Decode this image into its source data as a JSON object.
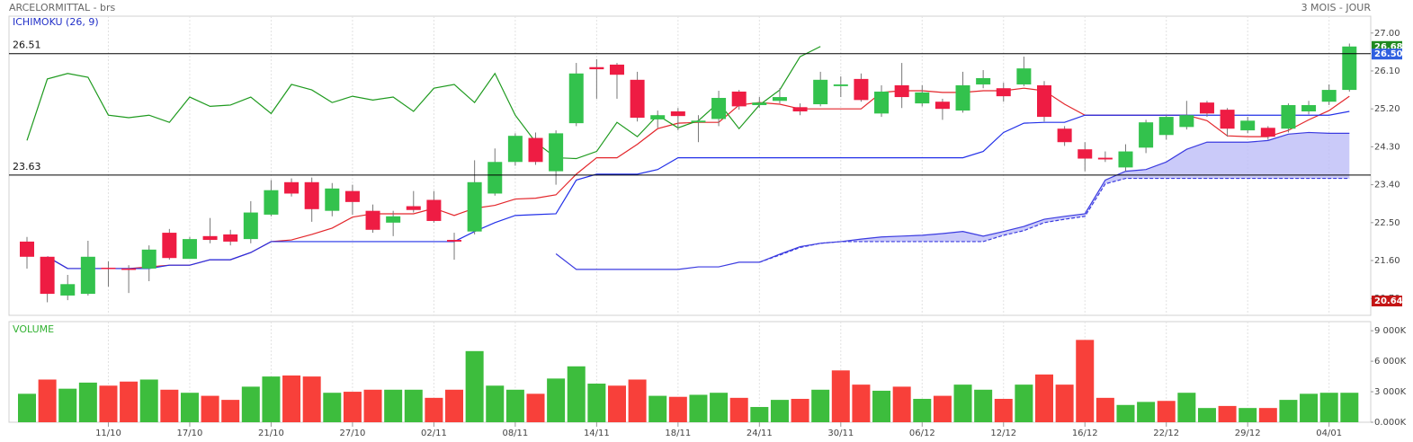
{
  "header": {
    "title": "ARCELORMITTAL - brs",
    "period": "3 MOIS - JOUR",
    "indicator": "ICHIMOKU (26, 9)"
  },
  "chart_data": [
    {
      "type": "candlestick",
      "categories": [
        null,
        null,
        null,
        null,
        "11/10",
        null,
        null,
        null,
        "17/10",
        null,
        null,
        null,
        "21/10",
        null,
        null,
        null,
        "27/10",
        null,
        null,
        null,
        "02/11",
        null,
        null,
        null,
        "08/11",
        null,
        null,
        null,
        "14/11",
        null,
        null,
        null,
        "18/11",
        null,
        null,
        null,
        "24/11",
        null,
        null,
        null,
        "30/11",
        null,
        null,
        null,
        "06/12",
        null,
        null,
        null,
        "12/12",
        null,
        null,
        null,
        "16/12",
        null,
        null,
        null,
        "22/12",
        null,
        null,
        null,
        "29/12",
        null,
        null,
        null,
        "04/01",
        null
      ],
      "open": [
        22.05,
        21.69,
        20.77,
        20.81,
        21.43,
        21.41,
        21.41,
        22.26,
        21.64,
        22.18,
        22.22,
        22.11,
        22.69,
        23.46,
        23.46,
        22.78,
        23.25,
        22.78,
        22.5,
        22.89,
        23.04,
        22.09,
        22.29,
        23.19,
        23.94,
        24.51,
        23.72,
        24.86,
        26.19,
        26.25,
        25.89,
        24.95,
        25.14,
        24.88,
        24.96,
        25.61,
        25.29,
        25.39,
        25.24,
        25.31,
        25.74,
        25.91,
        25.09,
        25.76,
        25.33,
        25.37,
        25.16,
        25.78,
        25.69,
        25.78,
        25.76,
        24.73,
        24.24,
        24.04,
        23.81,
        24.28,
        24.58,
        24.77,
        25.35,
        25.18,
        24.69,
        24.75,
        24.73,
        25.14,
        25.37,
        25.65
      ],
      "high": [
        22.16,
        21.69,
        21.26,
        22.07,
        21.58,
        21.49,
        21.96,
        22.35,
        22.16,
        22.61,
        22.33,
        23.01,
        23.51,
        23.55,
        23.57,
        23.44,
        23.4,
        22.93,
        22.78,
        23.25,
        23.25,
        22.26,
        23.98,
        24.26,
        24.62,
        24.64,
        24.69,
        26.29,
        26.38,
        26.29,
        26.08,
        25.16,
        25.22,
        25.05,
        25.63,
        25.65,
        25.48,
        25.69,
        25.33,
        26.08,
        25.97,
        26.04,
        25.76,
        26.29,
        25.76,
        25.44,
        26.08,
        26.12,
        25.82,
        26.44,
        25.86,
        24.79,
        24.41,
        24.19,
        24.36,
        24.94,
        25.05,
        25.39,
        25.39,
        25.22,
        25.01,
        24.79,
        25.33,
        25.39,
        25.78,
        26.75
      ],
      "low": [
        21.41,
        20.61,
        20.66,
        20.77,
        20.98,
        20.83,
        21.11,
        21.62,
        21.64,
        22.01,
        21.96,
        22.01,
        22.65,
        23.12,
        22.52,
        22.65,
        22.69,
        22.26,
        22.18,
        22.74,
        22.5,
        21.62,
        22.22,
        23.14,
        23.85,
        23.87,
        23.4,
        24.79,
        25.44,
        25.44,
        24.9,
        24.75,
        24.69,
        24.41,
        24.79,
        25.18,
        25.22,
        25.33,
        25.05,
        25.26,
        25.48,
        25.37,
        25.01,
        25.22,
        25.26,
        24.94,
        25.11,
        25.69,
        25.37,
        25.74,
        24.9,
        24.32,
        23.72,
        23.94,
        23.72,
        24.15,
        24.47,
        24.71,
        25.01,
        24.54,
        24.62,
        24.47,
        24.64,
        25.07,
        25.29,
        25.61
      ],
      "close": [
        21.69,
        20.81,
        21.04,
        21.69,
        21.4,
        21.38,
        21.86,
        21.66,
        22.11,
        22.09,
        22.05,
        22.74,
        23.27,
        23.19,
        22.82,
        23.31,
        22.99,
        22.33,
        22.65,
        22.8,
        22.54,
        22.05,
        23.46,
        23.94,
        24.56,
        23.94,
        24.62,
        26.04,
        26.14,
        26.01,
        24.99,
        25.05,
        25.03,
        24.92,
        25.46,
        25.26,
        25.35,
        25.48,
        25.14,
        25.89,
        25.78,
        25.41,
        25.61,
        25.48,
        25.59,
        25.2,
        25.76,
        25.93,
        25.5,
        26.16,
        25.01,
        24.41,
        24.02,
        24.0,
        24.19,
        24.88,
        25.01,
        25.05,
        25.09,
        24.73,
        24.92,
        24.54,
        25.29,
        25.29,
        25.65,
        26.68
      ],
      "up_color": "#33c24d",
      "down_color": "#ee1c43",
      "series": [
        {
          "color": "#e3262b",
          "values": [
            null,
            21.69,
            21.41,
            21.41,
            21.41,
            21.41,
            21.45,
            21.49,
            21.49,
            21.62,
            21.62,
            21.79,
            22.05,
            22.09,
            22.22,
            22.37,
            22.63,
            22.71,
            22.71,
            22.71,
            22.84,
            22.67,
            22.84,
            22.91,
            23.06,
            23.08,
            23.16,
            23.65,
            24.04,
            24.04,
            24.36,
            24.73,
            24.86,
            24.88,
            24.88,
            25.29,
            25.35,
            25.31,
            25.2,
            25.2,
            25.2,
            25.2,
            25.59,
            25.63,
            25.63,
            25.59,
            25.59,
            25.63,
            25.63,
            25.69,
            25.63,
            25.31,
            25.05,
            25.05,
            25.05,
            25.05,
            25.05,
            25.05,
            24.92,
            24.56,
            24.54,
            24.54,
            24.69,
            24.94,
            25.16,
            25.5
          ]
        },
        {
          "color": "#2230e8",
          "values": [
            null,
            21.69,
            21.41,
            21.41,
            21.41,
            21.41,
            21.41,
            21.49,
            21.49,
            21.62,
            21.62,
            21.79,
            22.05,
            22.05,
            22.05,
            22.05,
            22.05,
            22.05,
            22.05,
            22.05,
            22.05,
            22.05,
            22.29,
            22.5,
            22.67,
            22.69,
            22.71,
            23.51,
            23.65,
            23.65,
            23.65,
            23.76,
            24.04,
            24.04,
            24.04,
            24.04,
            24.04,
            24.04,
            24.04,
            24.04,
            24.04,
            24.04,
            24.04,
            24.04,
            24.04,
            24.04,
            24.04,
            24.19,
            24.64,
            24.86,
            24.88,
            24.88,
            25.05,
            25.05,
            25.05,
            25.05,
            25.05,
            25.05,
            25.05,
            25.05,
            25.05,
            25.05,
            25.05,
            25.05,
            25.05,
            25.14
          ]
        },
        {
          "color": "#1e9a1e",
          "values": [
            24.45,
            25.91,
            26.04,
            25.95,
            25.05,
            24.99,
            25.05,
            24.88,
            25.48,
            25.26,
            25.29,
            25.48,
            25.09,
            25.78,
            25.65,
            25.35,
            25.5,
            25.41,
            25.48,
            25.14,
            25.69,
            25.78,
            25.35,
            26.04,
            25.05,
            24.41,
            24.04,
            24.02,
            24.19,
            24.88,
            24.54,
            25.05,
            24.75,
            24.92,
            25.35,
            24.73,
            25.29,
            25.65,
            26.44,
            26.68,
            null,
            null,
            null,
            null,
            null,
            null,
            null,
            null,
            null,
            null,
            null,
            null,
            null,
            null,
            null,
            null,
            null,
            null,
            null,
            null,
            null,
            null,
            null,
            null,
            null,
            null
          ]
        },
        {
          "color": "#3b3be0",
          "values": [
            null,
            null,
            null,
            null,
            null,
            null,
            null,
            null,
            null,
            null,
            null,
            null,
            null,
            null,
            null,
            null,
            null,
            null,
            null,
            null,
            null,
            null,
            null,
            null,
            null,
            null,
            21.76,
            21.39,
            21.39,
            21.39,
            21.39,
            21.39,
            21.39,
            21.45,
            21.45,
            21.56,
            21.56,
            21.75,
            21.93,
            22.01,
            22.05,
            22.11,
            22.16,
            22.18,
            22.2,
            22.24,
            22.29,
            22.18,
            22.29,
            22.41,
            22.58,
            22.65,
            22.71,
            23.51,
            23.72,
            23.76,
            23.94,
            24.24,
            24.41,
            24.41,
            24.41,
            24.45,
            24.6,
            24.64,
            24.62,
            24.62
          ]
        },
        {
          "color": "#3b3be0",
          "dashed": true,
          "values": [
            null,
            null,
            null,
            null,
            null,
            null,
            null,
            null,
            null,
            null,
            null,
            null,
            null,
            null,
            null,
            null,
            null,
            null,
            null,
            null,
            null,
            null,
            null,
            null,
            null,
            null,
            null,
            null,
            null,
            null,
            null,
            null,
            null,
            null,
            null,
            null,
            21.56,
            21.73,
            21.91,
            22.01,
            22.05,
            22.05,
            22.05,
            22.05,
            22.05,
            22.05,
            22.05,
            22.05,
            22.2,
            22.31,
            22.5,
            22.58,
            22.65,
            23.42,
            23.55,
            23.55,
            23.55,
            23.55,
            23.55,
            23.55,
            23.55,
            23.55,
            23.55,
            23.55,
            23.55,
            23.55
          ]
        }
      ],
      "cloud_color": "#bdbdf7",
      "hlines": [
        26.51,
        23.63
      ],
      "price_labels": [
        {
          "value": 26.68,
          "label": "26.68",
          "color": "#1f8a1f"
        },
        {
          "value": 26.5,
          "label": "26.50",
          "color": "#2f5fe0"
        },
        {
          "value": 20.64,
          "label": "20.64",
          "color": "#c41515"
        }
      ],
      "ylim": [
        20.3,
        27.4
      ],
      "yticks": [
        {
          "value": 27,
          "label": "27.00"
        },
        {
          "value": 26.1,
          "label": "26.10"
        },
        {
          "value": 25.2,
          "label": "25.20"
        },
        {
          "value": 24.3,
          "label": "24.30"
        },
        {
          "value": 23.4,
          "label": "23.40"
        },
        {
          "value": 22.5,
          "label": "22.50"
        },
        {
          "value": 21.6,
          "label": "21.60"
        },
        {
          "value": 20.7,
          "label": "20.70"
        }
      ]
    },
    {
      "type": "bar",
      "title": "VOLUME",
      "values": [
        2800000,
        4200000,
        3300000,
        3900000,
        3600000,
        4000000,
        4200000,
        3200000,
        2900000,
        2600000,
        2200000,
        3500000,
        4500000,
        4600000,
        4500000,
        2900000,
        3000000,
        3200000,
        3200000,
        3200000,
        2400000,
        3200000,
        7000000,
        3600000,
        3200000,
        2800000,
        4300000,
        5500000,
        3800000,
        3600000,
        4200000,
        2600000,
        2500000,
        2700000,
        2900000,
        2400000,
        1500000,
        2200000,
        2300000,
        3200000,
        5100000,
        3700000,
        3100000,
        3500000,
        2300000,
        2600000,
        3700000,
        3200000,
        2300000,
        3700000,
        4700000,
        3700000,
        8100000,
        2400000,
        1700000,
        2000000,
        2100000,
        2900000,
        1400000,
        1600000,
        1400000,
        1400000,
        2200000,
        2800000,
        2900000,
        2900000
      ],
      "colors": [
        "#3dbd3d",
        "#f8403a",
        "#3dbd3d",
        "#3dbd3d",
        "#f8403a",
        "#f8403a",
        "#3dbd3d",
        "#f8403a",
        "#3dbd3d",
        "#f8403a",
        "#f8403a",
        "#3dbd3d",
        "#3dbd3d",
        "#f8403a",
        "#f8403a",
        "#3dbd3d",
        "#f8403a",
        "#f8403a",
        "#3dbd3d",
        "#3dbd3d",
        "#f8403a",
        "#f8403a",
        "#3dbd3d",
        "#3dbd3d",
        "#3dbd3d",
        "#f8403a",
        "#3dbd3d",
        "#3dbd3d",
        "#3dbd3d",
        "#f8403a",
        "#f8403a",
        "#3dbd3d",
        "#f8403a",
        "#3dbd3d",
        "#3dbd3d",
        "#f8403a",
        "#3dbd3d",
        "#3dbd3d",
        "#f8403a",
        "#3dbd3d",
        "#f8403a",
        "#f8403a",
        "#3dbd3d",
        "#f8403a",
        "#3dbd3d",
        "#f8403a",
        "#3dbd3d",
        "#3dbd3d",
        "#f8403a",
        "#3dbd3d",
        "#f8403a",
        "#f8403a",
        "#f8403a",
        "#f8403a",
        "#3dbd3d",
        "#3dbd3d",
        "#f8403a",
        "#3dbd3d",
        "#3dbd3d",
        "#f8403a",
        "#3dbd3d",
        "#f8403a",
        "#3dbd3d",
        "#3dbd3d",
        "#3dbd3d",
        "#3dbd3d"
      ],
      "ylim": [
        0,
        9900000
      ],
      "yticks": [
        {
          "value": 9000000,
          "label": "9 000K"
        },
        {
          "value": 6000000,
          "label": "6 000K"
        },
        {
          "value": 3000000,
          "label": "3 000K"
        },
        {
          "value": 0,
          "label": "0.000K"
        }
      ]
    }
  ]
}
